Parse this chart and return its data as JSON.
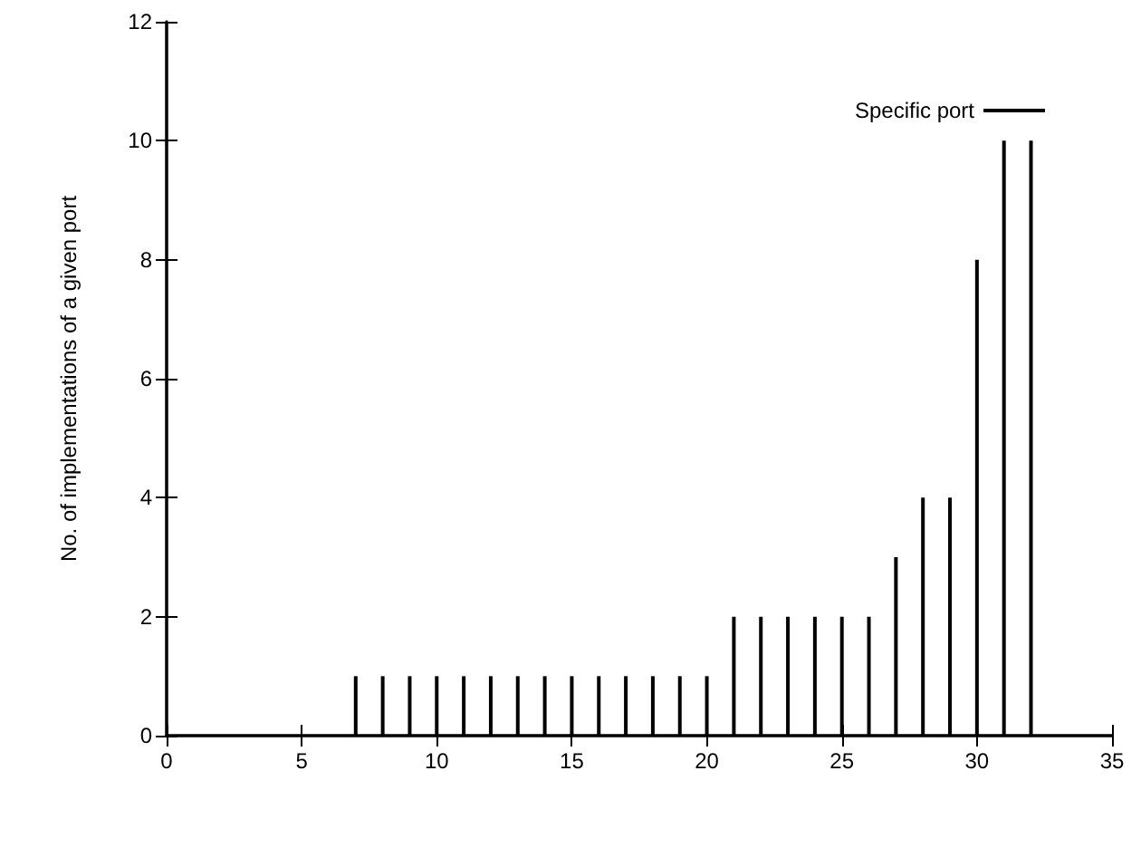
{
  "chart_data": {
    "type": "bar",
    "ylabel": "No. of implementations of a given port",
    "x": [
      7,
      8,
      9,
      10,
      11,
      12,
      13,
      14,
      15,
      16,
      17,
      18,
      19,
      20,
      21,
      22,
      23,
      24,
      25,
      26,
      27,
      28,
      29,
      30,
      31,
      32
    ],
    "series": [
      {
        "name": "Specific port",
        "color": "#000000",
        "values": [
          1,
          1,
          1,
          1,
          1,
          1,
          1,
          1,
          1,
          1,
          1,
          1,
          1,
          1,
          2,
          2,
          2,
          2,
          2,
          2,
          3,
          4,
          4,
          8,
          10,
          10
        ]
      }
    ],
    "xlim": [
      0,
      35
    ],
    "xticks": [
      0,
      5,
      10,
      15,
      20,
      25,
      30,
      35
    ],
    "ylim": [
      0,
      12
    ],
    "yticks": [
      0,
      2,
      4,
      6,
      8,
      10,
      12
    ],
    "grid": false,
    "legend": "top right"
  }
}
